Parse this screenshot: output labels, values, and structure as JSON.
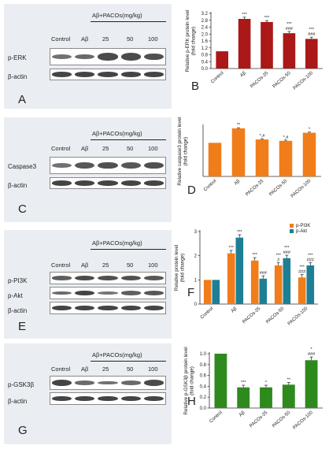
{
  "blots": [
    {
      "letter": "A",
      "columns": [
        "Control",
        "Aβ",
        "25",
        "50",
        "100"
      ],
      "treatment": "Aβ+PACOs(mg/kg)",
      "rows": [
        {
          "label": "p-ERK",
          "intensity": [
            0.55,
            0.6,
            0.85,
            0.85,
            0.8
          ]
        },
        {
          "label": "β-actin",
          "intensity": [
            0.9,
            0.9,
            0.9,
            0.9,
            0.9
          ]
        }
      ]
    },
    {
      "letter": "C",
      "columns": [
        "Control",
        "Aβ",
        "25",
        "50",
        "100"
      ],
      "treatment": "Aβ+PACOs(mg/kg)",
      "rows": [
        {
          "label": "Caspase3",
          "intensity": [
            0.55,
            0.75,
            0.8,
            0.75,
            0.8
          ]
        },
        {
          "label": "β-actin",
          "intensity": [
            0.9,
            0.9,
            0.9,
            0.9,
            0.9
          ]
        }
      ]
    },
    {
      "letter": "E",
      "columns": [
        "Control",
        "Aβ",
        "25",
        "50",
        "100"
      ],
      "treatment": "Aβ+PACOs(mg/kg)",
      "rows": [
        {
          "label": "p-PI3K",
          "intensity": [
            0.7,
            0.85,
            0.8,
            0.8,
            0.75
          ]
        },
        {
          "label": "p-Akt",
          "intensity": [
            0.6,
            0.9,
            0.5,
            0.7,
            0.75
          ]
        },
        {
          "label": "β-actin",
          "intensity": [
            0.9,
            0.9,
            0.9,
            0.9,
            0.9
          ]
        }
      ]
    },
    {
      "letter": "G",
      "columns": [
        "Control",
        "Aβ",
        "25",
        "50",
        "100"
      ],
      "treatment": "Aβ+PACOs(mg/kg)",
      "rows": [
        {
          "label": "p-GSK3β",
          "intensity": [
            0.9,
            0.6,
            0.55,
            0.6,
            0.85
          ]
        },
        {
          "label": "β-actin",
          "intensity": [
            0.9,
            0.9,
            0.9,
            0.9,
            0.9
          ]
        }
      ]
    }
  ],
  "chart_data": [
    {
      "letter": "B",
      "type": "bar",
      "ylabel": "Relative p-ERK protein level (fold change)",
      "categories": [
        "Control",
        "Aβ",
        "PACOs-25",
        "PACOs-50",
        "PACOs-100"
      ],
      "ylim": [
        0,
        3.2
      ],
      "yticks": [
        "0.0",
        "0.4",
        "0.8",
        "1.2",
        "1.6",
        "2.0",
        "2.4",
        "2.8",
        "3.2"
      ],
      "series": [
        {
          "values": [
            1.0,
            2.88,
            2.7,
            2.05,
            1.72
          ],
          "errors": [
            0,
            0.1,
            0.08,
            0.1,
            0.1
          ],
          "annotations": [
            "",
            "***",
            "***",
            "***\n###",
            "***\n###"
          ],
          "color": "#aa1818"
        }
      ]
    },
    {
      "letter": "D",
      "type": "bar",
      "ylabel": "Relative caspase3 protein level (fold change)",
      "categories": [
        "Control",
        "Aβ",
        "PACOs-25",
        "PACOs-50",
        "PACOs-100"
      ],
      "ylim": [
        0,
        1.5
      ],
      "yticks": [],
      "series": [
        {
          "values": [
            1.0,
            1.43,
            1.1,
            1.06,
            1.3
          ],
          "errors": [
            0,
            0.02,
            0.02,
            0.02,
            0.02
          ],
          "annotations": [
            "",
            "**",
            "*,#",
            "*,#",
            "*"
          ],
          "color": "#f07d1a"
        }
      ]
    },
    {
      "letter": "F",
      "type": "bar",
      "ylabel": "Relative protein level (fold change)",
      "categories": [
        "Control",
        "Aβ",
        "PACOs-25",
        "PACOs-50",
        "PACOs-100"
      ],
      "ylim": [
        0,
        3
      ],
      "yticks": [
        "0",
        "1",
        "2",
        "3"
      ],
      "legend_position": "top-right",
      "series": [
        {
          "name": "p-PI3K",
          "values": [
            1.0,
            2.1,
            1.8,
            1.6,
            1.1
          ],
          "errors": [
            0,
            0.12,
            0.12,
            0.12,
            0.12
          ],
          "annotations": [
            "",
            "***",
            "***",
            "***\n#",
            "***\n###"
          ],
          "color": "#f07d1a"
        },
        {
          "name": "p-Akt",
          "values": [
            1.0,
            2.75,
            1.05,
            1.9,
            1.6
          ],
          "errors": [
            0,
            0.12,
            0.12,
            0.12,
            0.12
          ],
          "annotations": [
            "",
            "***",
            "###",
            "***\n###",
            "***\n###"
          ],
          "color": "#1d7f95"
        }
      ]
    },
    {
      "letter": "H",
      "type": "bar",
      "ylabel": "Relative p-GSK3β protein level (fold change)",
      "categories": [
        "Control",
        "Aβ",
        "PACOs-25",
        "PACOs-50",
        "PACOs-100"
      ],
      "ylim": [
        0,
        1.0
      ],
      "yticks": [
        "0.0",
        "0.2",
        "0.4",
        "0.6",
        "0.8",
        "1.0"
      ],
      "series": [
        {
          "values": [
            1.0,
            0.38,
            0.38,
            0.43,
            0.88
          ],
          "errors": [
            0,
            0.04,
            0.04,
            0.04,
            0.06
          ],
          "annotations": [
            "",
            "***",
            "*",
            "**",
            "*\n###"
          ],
          "color": "#2f8a1e"
        }
      ]
    }
  ]
}
